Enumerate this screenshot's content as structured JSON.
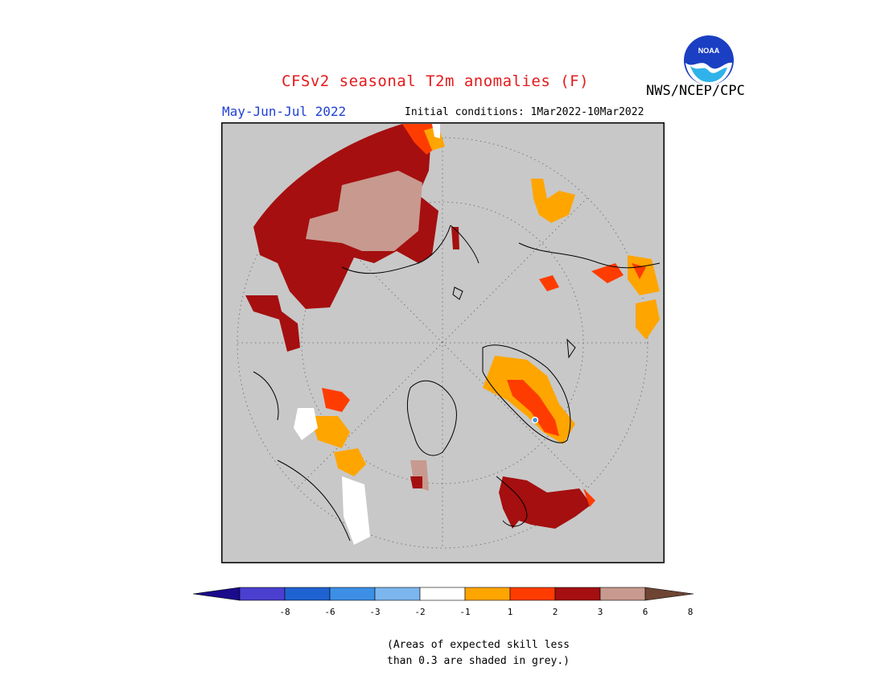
{
  "title": "CFSv2 seasonal T2m anomalies (F)",
  "agency": "NWS/NCEP/CPC",
  "logo_text": "NOAA",
  "season": "May-Jun-Jul 2022",
  "initial_conditions": "Initial conditions: 1Mar2022-10Mar2022",
  "colors": {
    "title": "#e41a1c",
    "season": "#1f3fd6",
    "grey_mask": "#c8c8c8"
  },
  "colorbar": {
    "tick_labels": [
      "-8",
      "-6",
      "-3",
      "-2",
      "-1",
      "1",
      "2",
      "3",
      "6",
      "8"
    ],
    "bins": [
      {
        "color": "#1a0a8c"
      },
      {
        "color": "#4b3fd0"
      },
      {
        "color": "#1f63d2"
      },
      {
        "color": "#3d8fe6"
      },
      {
        "color": "#7cb6ee"
      },
      {
        "color": "#ffffff"
      },
      {
        "color": "#ffa500"
      },
      {
        "color": "#ff3c00"
      },
      {
        "color": "#a50f0f"
      },
      {
        "color": "#c8998f"
      },
      {
        "color": "#6e4533"
      }
    ]
  },
  "note": {
    "line1": "(Areas of expected skill less",
    "line2": "than 0.3 are shaded in grey.)"
  }
}
